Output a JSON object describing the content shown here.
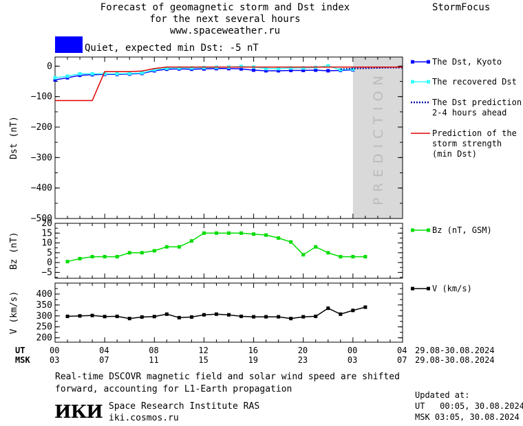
{
  "header": {
    "title_lines": [
      "Forecast of geomagnetic storm and Dst index",
      "for the next several hours",
      "www.spaceweather.ru"
    ],
    "brand": "StormFocus"
  },
  "status": {
    "text": "Quiet, expected min Dst: -5 nT",
    "color": "#0000ff"
  },
  "prediction_label": "PREDICTION",
  "time_axis": {
    "ut_label": "UT",
    "msk_label": "MSK",
    "ut_ticks": [
      "00",
      "04",
      "08",
      "12",
      "16",
      "20",
      "00",
      "04"
    ],
    "msk_ticks": [
      "03",
      "07",
      "11",
      "15",
      "19",
      "23",
      "03",
      "07"
    ],
    "ut_range": "29.08-30.08.2024",
    "msk_range": "29.08-30.08.2024"
  },
  "footer": {
    "note_lines": [
      "Real-time DSCOVR magnetic field and solar wind speed are shifted",
      "forward, accounting for L1-Earth propagation"
    ],
    "logo": "ИКИ",
    "institute": "Space Research Institute RAS",
    "site": "iki.cosmos.ru",
    "updated_label": "Updated at:",
    "updated_ut": "UT   00:05, 30.08.2024",
    "updated_msk": "MSK 03:05, 30.08.2024"
  },
  "chart_data": [
    {
      "type": "line",
      "ylabel": "Dst (nT)",
      "ylim": [
        -500,
        30
      ],
      "yticks": [
        0,
        -100,
        -200,
        -300,
        -400,
        -500
      ],
      "prediction_region_hours": [
        24,
        28
      ],
      "series": [
        {
          "name": "The Dst, Kyoto",
          "color": "#0000ff",
          "marker": "square",
          "x": [
            0,
            1,
            2,
            3,
            4,
            5,
            6,
            7,
            8,
            9,
            10,
            11,
            12,
            13,
            14,
            15,
            16,
            17,
            18,
            19,
            20,
            21,
            22,
            23,
            24
          ],
          "y": [
            -45,
            -38,
            -30,
            -28,
            -27,
            -27,
            -26,
            -24,
            -15,
            -10,
            -9,
            -10,
            -9,
            -8,
            -8,
            -9,
            -13,
            -15,
            -15,
            -14,
            -14,
            -13,
            -15,
            -14,
            -12
          ]
        },
        {
          "name": "The recovered Dst",
          "color": "#33ffff",
          "marker": "square",
          "x": [
            0,
            1,
            2,
            3,
            4,
            5,
            6,
            7,
            8,
            9,
            10,
            11,
            12,
            13,
            14,
            15,
            16,
            17,
            18,
            19,
            20,
            21,
            22,
            23,
            24
          ],
          "y": [
            -38,
            -33,
            -25,
            -25,
            -25,
            -25,
            -24,
            -22,
            -12,
            -7,
            -6,
            -6,
            -5,
            -4,
            -3,
            -1,
            -3,
            -8,
            -8,
            -6,
            -6,
            -4,
            1,
            -12,
            -10
          ]
        },
        {
          "name": "The Dst prediction\n2-4 hours ahead",
          "color": "#0000aa",
          "dash": true,
          "x": [
            23,
            24,
            25,
            26,
            27,
            28
          ],
          "y": [
            -10,
            -8,
            -7,
            -6,
            -5,
            -5
          ]
        },
        {
          "name": "Prediction of the\nstorm strength\n(min Dst)",
          "color": "#dd0000",
          "x": [
            0,
            3,
            4,
            6,
            7,
            8,
            9,
            28
          ],
          "y": [
            -113,
            -113,
            -18,
            -18,
            -16,
            -8,
            -3,
            -3
          ]
        }
      ]
    },
    {
      "type": "line",
      "ylabel": "Bz (nT)",
      "ylim": [
        -8,
        20
      ],
      "yticks": [
        20,
        15,
        10,
        5,
        0,
        -5
      ],
      "series": [
        {
          "name": "Bz (nT, GSM)",
          "color": "#00dd00",
          "marker": "square",
          "x": [
            1,
            2,
            3,
            4,
            5,
            6,
            7,
            8,
            9,
            10,
            11,
            12,
            13,
            14,
            15,
            16,
            17,
            18,
            19,
            20,
            21,
            22,
            23,
            24,
            25
          ],
          "y": [
            0.5,
            2,
            3,
            3,
            3,
            5,
            5,
            6,
            8,
            8,
            11,
            15,
            15,
            15,
            15,
            14.5,
            14,
            12.5,
            10.5,
            4,
            8,
            5,
            3,
            3,
            3
          ]
        }
      ]
    },
    {
      "type": "line",
      "ylabel": "V (km/s)",
      "ylim": [
        180,
        450
      ],
      "yticks": [
        400,
        350,
        300,
        250,
        200
      ],
      "series": [
        {
          "name": "V (km/s)",
          "color": "#000000",
          "marker": "square",
          "x": [
            1,
            2,
            3,
            4,
            5,
            6,
            7,
            8,
            9,
            10,
            11,
            12,
            13,
            14,
            15,
            16,
            17,
            18,
            19,
            20,
            21,
            22,
            23,
            24,
            25
          ],
          "y": [
            298,
            300,
            302,
            297,
            298,
            288,
            295,
            297,
            308,
            292,
            295,
            305,
            308,
            305,
            298,
            296,
            296,
            296,
            288,
            296,
            298,
            335,
            308,
            325,
            340
          ]
        }
      ]
    }
  ]
}
